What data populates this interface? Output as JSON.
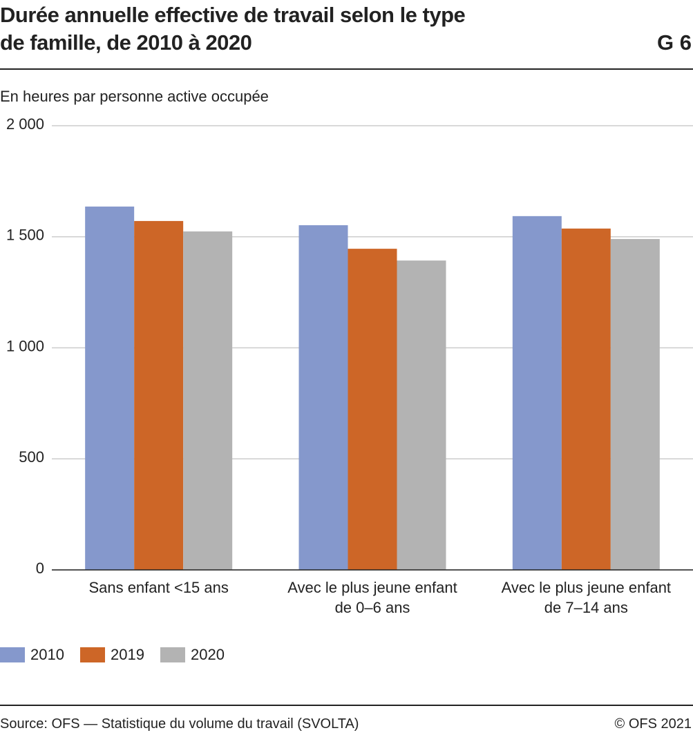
{
  "chart_data": {
    "type": "bar",
    "title": "Durée annuelle effective de travail selon le type\nde famille, de 2010 à 2020",
    "chart_id": "G 6",
    "subtitle": "En heures par personne active occupée",
    "categories": [
      "Sans enfant <15 ans",
      "Avec le plus jeune enfant\nde 0–6 ans",
      "Avec le plus jeune enfant\nde 7–14 ans"
    ],
    "series": [
      {
        "name": "2010",
        "color": "#8598cc",
        "values": [
          1636,
          1552,
          1593
        ]
      },
      {
        "name": "2019",
        "color": "#cd6627",
        "values": [
          1571,
          1446,
          1537
        ]
      },
      {
        "name": "2020",
        "color": "#b3b3b3",
        "values": [
          1524,
          1393,
          1490
        ]
      }
    ],
    "ylim": [
      0,
      2000
    ],
    "yticks": [
      0,
      500,
      {
        "value": 1000,
        "label": "1 000"
      },
      {
        "value": 1500,
        "label": "1 500"
      },
      {
        "value": 2000,
        "label": "2 000"
      }
    ],
    "grid": true,
    "source": "Source: OFS — Statistique du volume du travail (SVOLTA)",
    "copyright": "© OFS 2021"
  }
}
